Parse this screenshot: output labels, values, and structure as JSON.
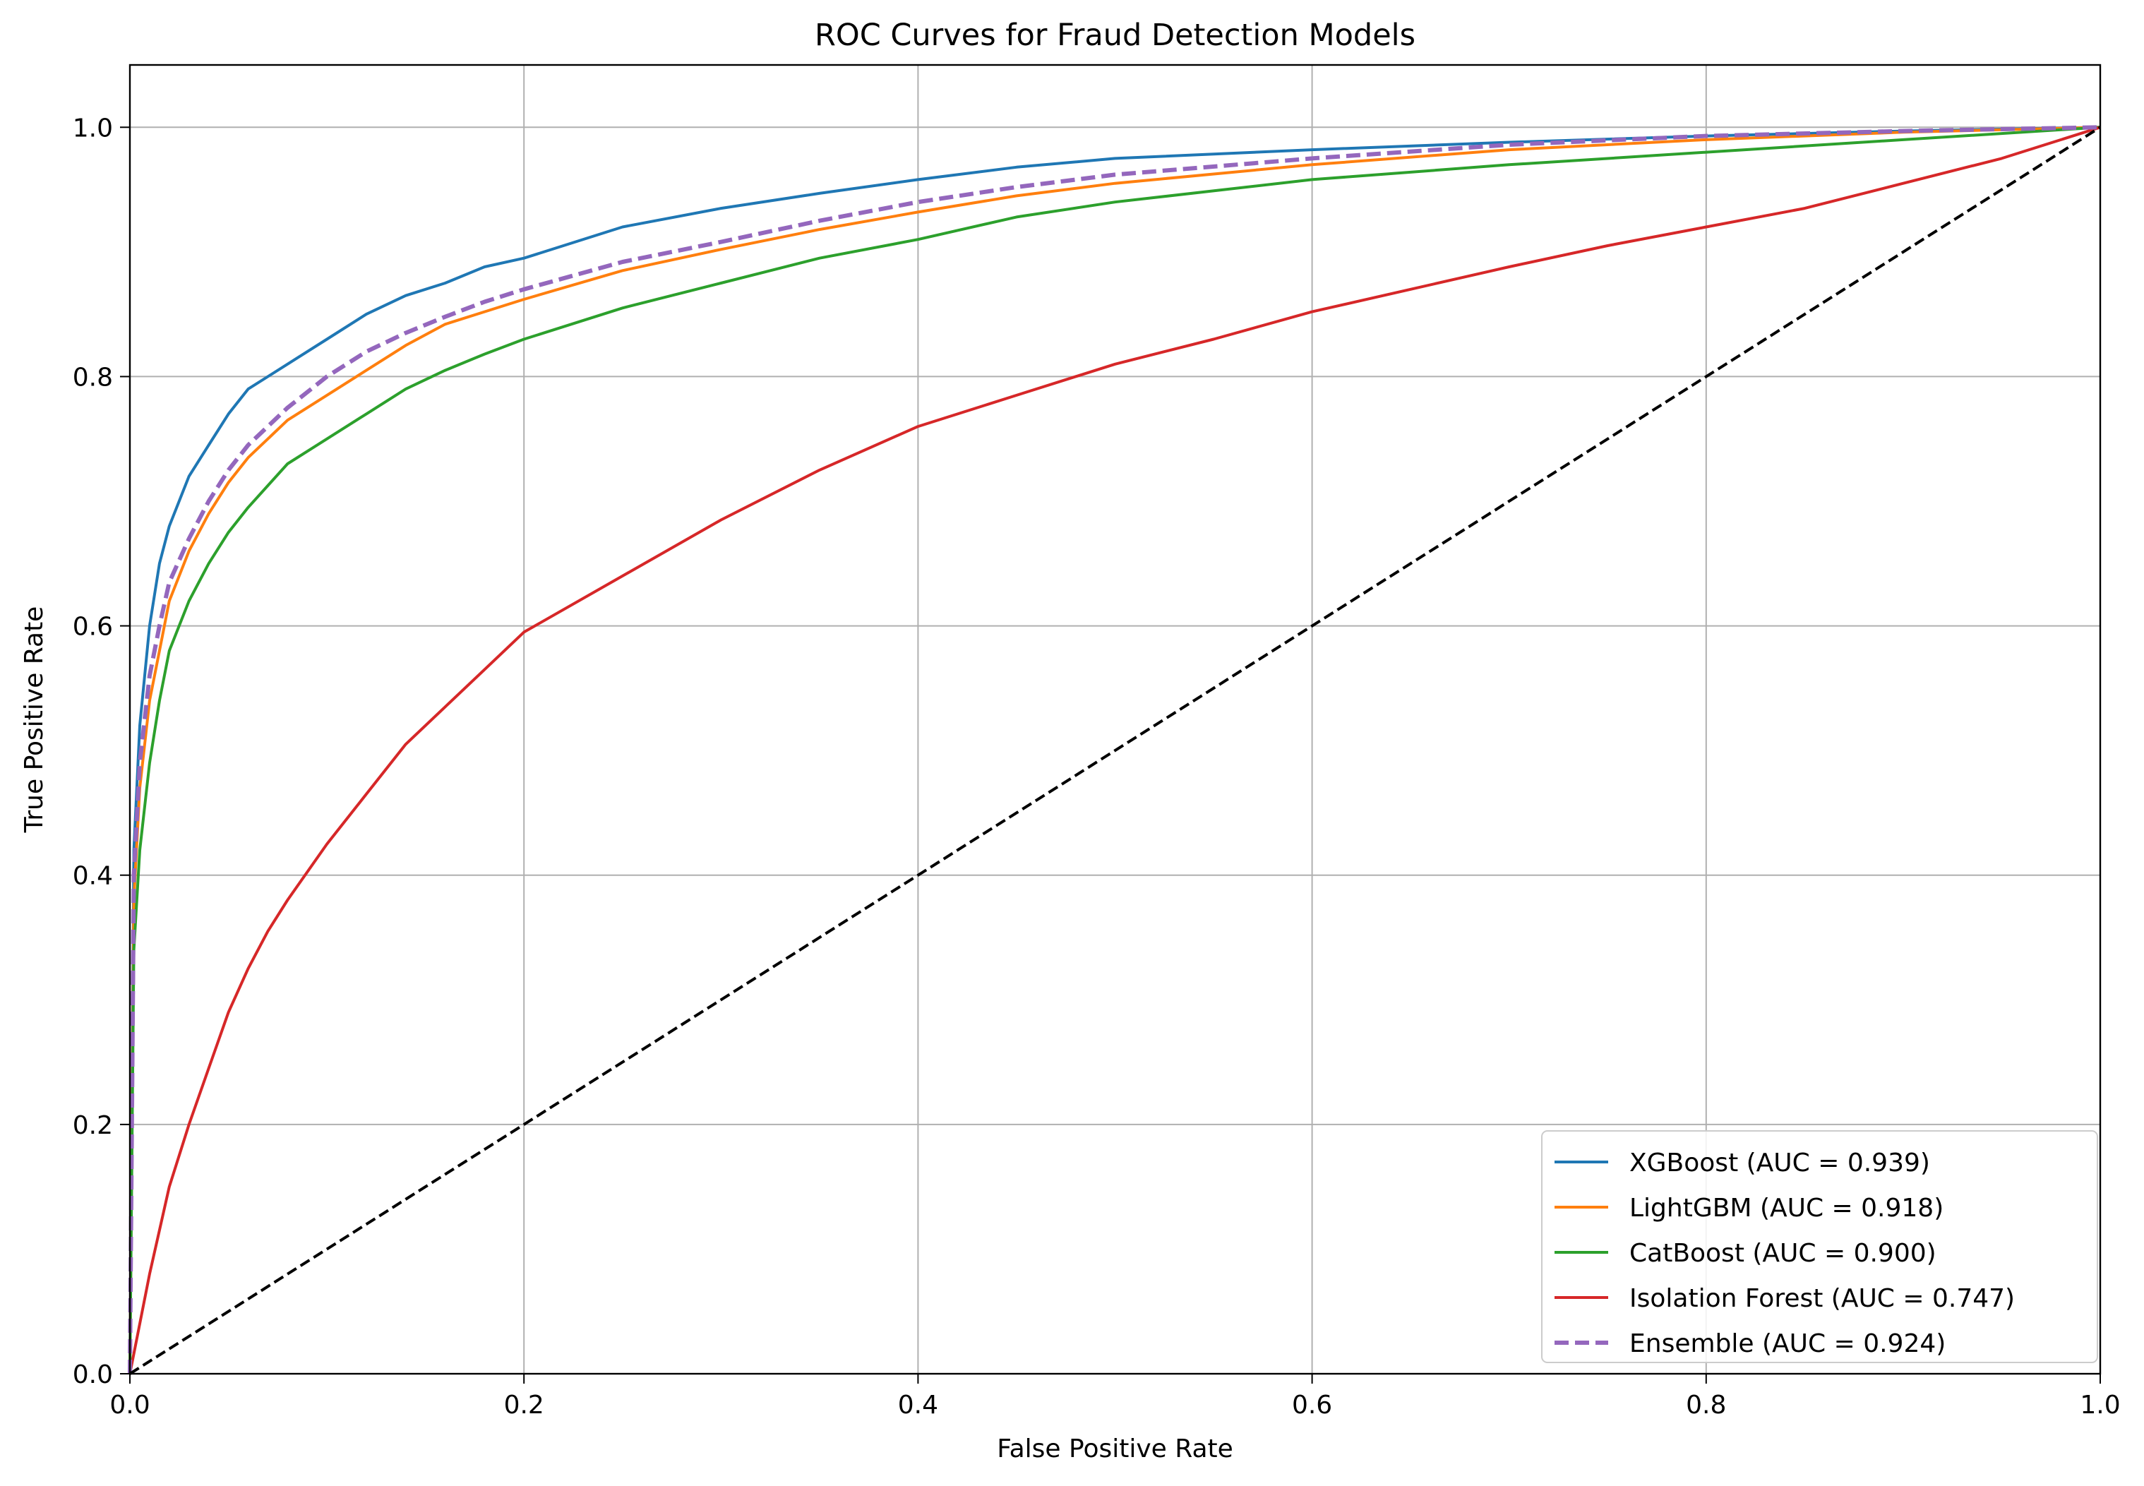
{
  "chart_data": {
    "type": "line",
    "title": "ROC Curves for Fraud Detection Models",
    "xlabel": "False Positive Rate",
    "ylabel": "True Positive Rate",
    "xlim": [
      0.0,
      1.0
    ],
    "ylim": [
      0.0,
      1.05
    ],
    "xticks": [
      "0.0",
      "0.2",
      "0.4",
      "0.6",
      "0.8",
      "1.0"
    ],
    "yticks": [
      "0.0",
      "0.2",
      "0.4",
      "0.6",
      "0.8",
      "1.0"
    ],
    "grid": true,
    "legend_position": "lower-right",
    "series": [
      {
        "name": "XGBoost (AUC = 0.939)",
        "color": "#1f77b4",
        "dash": "solid",
        "x": [
          0,
          0.002,
          0.005,
          0.01,
          0.015,
          0.02,
          0.03,
          0.04,
          0.05,
          0.06,
          0.08,
          0.1,
          0.12,
          0.14,
          0.16,
          0.18,
          0.2,
          0.25,
          0.3,
          0.35,
          0.4,
          0.45,
          0.5,
          0.6,
          0.7,
          0.8,
          0.9,
          1.0
        ],
        "y": [
          0,
          0.42,
          0.52,
          0.6,
          0.65,
          0.68,
          0.72,
          0.745,
          0.77,
          0.79,
          0.81,
          0.83,
          0.85,
          0.865,
          0.875,
          0.888,
          0.895,
          0.92,
          0.935,
          0.947,
          0.958,
          0.968,
          0.975,
          0.982,
          0.988,
          0.993,
          0.997,
          1.0
        ]
      },
      {
        "name": "LightGBM (AUC = 0.918)",
        "color": "#ff7f0e",
        "dash": "solid",
        "x": [
          0,
          0.002,
          0.005,
          0.01,
          0.015,
          0.02,
          0.03,
          0.04,
          0.05,
          0.06,
          0.08,
          0.1,
          0.12,
          0.14,
          0.16,
          0.18,
          0.2,
          0.25,
          0.3,
          0.35,
          0.4,
          0.45,
          0.5,
          0.6,
          0.7,
          0.8,
          0.9,
          1.0
        ],
        "y": [
          0,
          0.38,
          0.47,
          0.54,
          0.58,
          0.62,
          0.66,
          0.69,
          0.715,
          0.735,
          0.765,
          0.785,
          0.805,
          0.825,
          0.842,
          0.852,
          0.862,
          0.885,
          0.902,
          0.918,
          0.932,
          0.945,
          0.955,
          0.97,
          0.982,
          0.99,
          0.996,
          1.0
        ]
      },
      {
        "name": "CatBoost (AUC = 0.900)",
        "color": "#2ca02c",
        "dash": "solid",
        "x": [
          0,
          0.002,
          0.005,
          0.01,
          0.015,
          0.02,
          0.03,
          0.04,
          0.05,
          0.06,
          0.08,
          0.1,
          0.12,
          0.14,
          0.16,
          0.18,
          0.2,
          0.25,
          0.3,
          0.35,
          0.4,
          0.45,
          0.5,
          0.6,
          0.7,
          0.8,
          0.9,
          1.0
        ],
        "y": [
          0,
          0.34,
          0.42,
          0.49,
          0.54,
          0.58,
          0.62,
          0.65,
          0.675,
          0.695,
          0.73,
          0.75,
          0.77,
          0.79,
          0.805,
          0.818,
          0.83,
          0.855,
          0.875,
          0.895,
          0.91,
          0.928,
          0.94,
          0.958,
          0.97,
          0.98,
          0.99,
          1.0
        ]
      },
      {
        "name": "Isolation Forest (AUC = 0.747)",
        "color": "#d62728",
        "dash": "solid",
        "x": [
          0,
          0.01,
          0.02,
          0.03,
          0.04,
          0.05,
          0.06,
          0.07,
          0.08,
          0.1,
          0.12,
          0.14,
          0.16,
          0.18,
          0.2,
          0.25,
          0.3,
          0.35,
          0.4,
          0.45,
          0.5,
          0.55,
          0.6,
          0.65,
          0.7,
          0.75,
          0.8,
          0.85,
          0.9,
          0.95,
          1.0
        ],
        "y": [
          0,
          0.08,
          0.15,
          0.2,
          0.245,
          0.29,
          0.325,
          0.355,
          0.38,
          0.425,
          0.465,
          0.505,
          0.535,
          0.565,
          0.595,
          0.64,
          0.685,
          0.725,
          0.76,
          0.785,
          0.81,
          0.83,
          0.852,
          0.87,
          0.888,
          0.905,
          0.92,
          0.935,
          0.955,
          0.975,
          1.0
        ]
      },
      {
        "name": "Ensemble (AUC = 0.924)",
        "color": "#9467bd",
        "dash": "dashed",
        "x": [
          0,
          0.002,
          0.005,
          0.01,
          0.015,
          0.02,
          0.03,
          0.04,
          0.05,
          0.06,
          0.08,
          0.1,
          0.12,
          0.14,
          0.16,
          0.18,
          0.2,
          0.25,
          0.3,
          0.35,
          0.4,
          0.45,
          0.5,
          0.6,
          0.7,
          0.8,
          0.9,
          1.0
        ],
        "y": [
          0,
          0.4,
          0.49,
          0.56,
          0.6,
          0.635,
          0.67,
          0.7,
          0.725,
          0.745,
          0.775,
          0.8,
          0.82,
          0.835,
          0.848,
          0.86,
          0.87,
          0.892,
          0.908,
          0.925,
          0.94,
          0.952,
          0.962,
          0.975,
          0.986,
          0.993,
          0.997,
          1.0
        ]
      }
    ],
    "reference_line": {
      "x": [
        0,
        1
      ],
      "y": [
        0,
        1
      ],
      "color": "#000000",
      "dash": "dashed"
    }
  }
}
